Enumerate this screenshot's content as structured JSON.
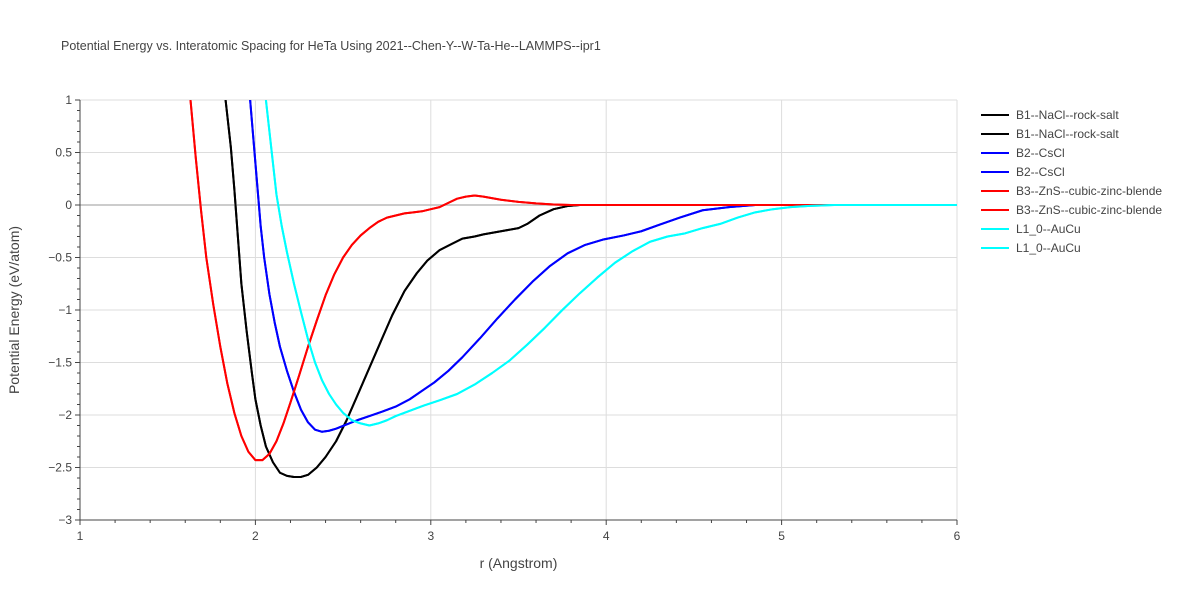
{
  "chart_data": {
    "type": "line",
    "title": "Potential Energy vs. Interatomic Spacing for HeTa Using 2021--Chen-Y--W-Ta-He--LAMMPS--ipr1",
    "xlabel": "r (Angstrom)",
    "ylabel": "Potential Energy (eV/atom)",
    "xlim": [
      1,
      6
    ],
    "ylim": [
      -3,
      1
    ],
    "xticks": [
      1,
      2,
      3,
      4,
      5,
      6
    ],
    "xtick_labels": [
      "1",
      "2",
      "3",
      "4",
      "5",
      "6"
    ],
    "yticks": [
      -3,
      -2.5,
      -2,
      -1.5,
      -1,
      -0.5,
      0,
      0.5,
      1
    ],
    "ytick_labels": [
      "−3",
      "−2.5",
      "−2",
      "−1.5",
      "−1",
      "−0.5",
      "0",
      "0.5",
      "1"
    ],
    "grid": true,
    "legend_position": "right",
    "series": [
      {
        "name": "B1--NaCl--rock-salt",
        "color": "#000000",
        "x": [
          1.83,
          1.86,
          1.88,
          1.9,
          1.92,
          1.95,
          1.98,
          2.0,
          2.03,
          2.06,
          2.1,
          2.14,
          2.18,
          2.22,
          2.26,
          2.3,
          2.35,
          2.4,
          2.46,
          2.52,
          2.58,
          2.65,
          2.72,
          2.78,
          2.85,
          2.92,
          2.98,
          3.05,
          3.12,
          3.18,
          3.25,
          3.3,
          3.4,
          3.5,
          3.55,
          3.62,
          3.7,
          3.78,
          3.85,
          3.95,
          4.1,
          4.3,
          5.0,
          6.0
        ],
        "y": [
          1.0,
          0.55,
          0.15,
          -0.3,
          -0.75,
          -1.2,
          -1.6,
          -1.85,
          -2.1,
          -2.3,
          -2.45,
          -2.55,
          -2.58,
          -2.59,
          -2.59,
          -2.57,
          -2.5,
          -2.4,
          -2.25,
          -2.05,
          -1.82,
          -1.55,
          -1.28,
          -1.05,
          -0.82,
          -0.65,
          -0.53,
          -0.43,
          -0.37,
          -0.32,
          -0.3,
          -0.28,
          -0.25,
          -0.22,
          -0.18,
          -0.1,
          -0.04,
          -0.01,
          0.0,
          0.0,
          0.0,
          0.0,
          0.0,
          0.0
        ]
      },
      {
        "name": "B1--NaCl--rock-salt",
        "color": "#000000",
        "x": [
          1.83,
          1.86,
          1.88,
          1.9,
          1.92,
          1.95,
          1.98,
          2.0,
          2.03,
          2.06,
          2.1,
          2.14,
          2.18,
          2.22,
          2.26,
          2.3,
          2.35,
          2.4,
          2.46,
          2.52,
          2.58,
          2.65,
          2.72,
          2.78,
          2.85,
          2.92,
          2.98,
          3.05,
          3.12,
          3.18,
          3.25,
          3.3,
          3.4,
          3.5,
          3.55,
          3.62,
          3.7,
          3.78,
          3.85,
          3.95,
          4.1,
          4.3,
          5.0,
          6.0
        ],
        "y": [
          1.0,
          0.55,
          0.15,
          -0.3,
          -0.75,
          -1.2,
          -1.6,
          -1.85,
          -2.1,
          -2.3,
          -2.45,
          -2.55,
          -2.58,
          -2.59,
          -2.59,
          -2.57,
          -2.5,
          -2.4,
          -2.25,
          -2.05,
          -1.82,
          -1.55,
          -1.28,
          -1.05,
          -0.82,
          -0.65,
          -0.53,
          -0.43,
          -0.37,
          -0.32,
          -0.3,
          -0.28,
          -0.25,
          -0.22,
          -0.18,
          -0.1,
          -0.04,
          -0.01,
          0.0,
          0.0,
          0.0,
          0.0,
          0.0,
          0.0
        ]
      },
      {
        "name": "B2--CsCl",
        "color": "#0000ff",
        "x": [
          1.97,
          1.99,
          2.01,
          2.03,
          2.05,
          2.08,
          2.11,
          2.14,
          2.18,
          2.22,
          2.26,
          2.3,
          2.34,
          2.38,
          2.42,
          2.46,
          2.52,
          2.58,
          2.65,
          2.72,
          2.8,
          2.88,
          2.95,
          3.02,
          3.1,
          3.18,
          3.28,
          3.38,
          3.48,
          3.58,
          3.68,
          3.78,
          3.88,
          3.98,
          4.1,
          4.2,
          4.3,
          4.42,
          4.55,
          4.7,
          4.85,
          5.0,
          5.2,
          6.0
        ],
        "y": [
          1.0,
          0.6,
          0.2,
          -0.2,
          -0.5,
          -0.85,
          -1.12,
          -1.35,
          -1.58,
          -1.78,
          -1.95,
          -2.07,
          -2.14,
          -2.16,
          -2.15,
          -2.13,
          -2.09,
          -2.05,
          -2.01,
          -1.97,
          -1.92,
          -1.85,
          -1.77,
          -1.69,
          -1.58,
          -1.45,
          -1.27,
          -1.08,
          -0.9,
          -0.73,
          -0.58,
          -0.46,
          -0.38,
          -0.33,
          -0.29,
          -0.25,
          -0.19,
          -0.12,
          -0.05,
          -0.02,
          0.0,
          0.0,
          0.0,
          0.0
        ]
      },
      {
        "name": "B2--CsCl",
        "color": "#0000ff",
        "x": [
          1.97,
          1.99,
          2.01,
          2.03,
          2.05,
          2.08,
          2.11,
          2.14,
          2.18,
          2.22,
          2.26,
          2.3,
          2.34,
          2.38,
          2.42,
          2.46,
          2.52,
          2.58,
          2.65,
          2.72,
          2.8,
          2.88,
          2.95,
          3.02,
          3.1,
          3.18,
          3.28,
          3.38,
          3.48,
          3.58,
          3.68,
          3.78,
          3.88,
          3.98,
          4.1,
          4.2,
          4.3,
          4.42,
          4.55,
          4.7,
          4.85,
          5.0,
          5.2,
          6.0
        ],
        "y": [
          1.0,
          0.6,
          0.2,
          -0.2,
          -0.5,
          -0.85,
          -1.12,
          -1.35,
          -1.58,
          -1.78,
          -1.95,
          -2.07,
          -2.14,
          -2.16,
          -2.15,
          -2.13,
          -2.09,
          -2.05,
          -2.01,
          -1.97,
          -1.92,
          -1.85,
          -1.77,
          -1.69,
          -1.58,
          -1.45,
          -1.27,
          -1.08,
          -0.9,
          -0.73,
          -0.58,
          -0.46,
          -0.38,
          -0.33,
          -0.29,
          -0.25,
          -0.19,
          -0.12,
          -0.05,
          -0.02,
          0.0,
          0.0,
          0.0,
          0.0
        ]
      },
      {
        "name": "B3--ZnS--cubic-zinc-blende",
        "color": "#ff0000",
        "x": [
          1.63,
          1.66,
          1.69,
          1.72,
          1.76,
          1.8,
          1.84,
          1.88,
          1.92,
          1.96,
          2.0,
          2.04,
          2.08,
          2.12,
          2.16,
          2.2,
          2.25,
          2.3,
          2.35,
          2.4,
          2.45,
          2.5,
          2.55,
          2.6,
          2.65,
          2.7,
          2.75,
          2.8,
          2.85,
          2.9,
          2.95,
          3.0,
          3.05,
          3.1,
          3.15,
          3.2,
          3.25,
          3.3,
          3.4,
          3.5,
          3.6,
          3.7,
          3.8,
          3.9,
          4.0,
          4.5,
          5.0,
          6.0
        ],
        "y": [
          1.0,
          0.45,
          -0.05,
          -0.5,
          -0.95,
          -1.35,
          -1.7,
          -1.98,
          -2.2,
          -2.35,
          -2.43,
          -2.43,
          -2.37,
          -2.25,
          -2.08,
          -1.88,
          -1.62,
          -1.35,
          -1.1,
          -0.86,
          -0.66,
          -0.5,
          -0.38,
          -0.29,
          -0.22,
          -0.16,
          -0.12,
          -0.1,
          -0.08,
          -0.07,
          -0.06,
          -0.04,
          -0.02,
          0.02,
          0.06,
          0.08,
          0.09,
          0.08,
          0.05,
          0.03,
          0.015,
          0.005,
          0.0,
          0.0,
          0.0,
          0.0,
          0.0,
          0.0
        ]
      },
      {
        "name": "B3--ZnS--cubic-zinc-blende",
        "color": "#ff0000",
        "x": [
          1.63,
          1.66,
          1.69,
          1.72,
          1.76,
          1.8,
          1.84,
          1.88,
          1.92,
          1.96,
          2.0,
          2.04,
          2.08,
          2.12,
          2.16,
          2.2,
          2.25,
          2.3,
          2.35,
          2.4,
          2.45,
          2.5,
          2.55,
          2.6,
          2.65,
          2.7,
          2.75,
          2.8,
          2.85,
          2.9,
          2.95,
          3.0,
          3.05,
          3.1,
          3.15,
          3.2,
          3.25,
          3.3,
          3.4,
          3.5,
          3.6,
          3.7,
          3.8,
          3.9,
          4.0,
          4.5,
          5.0,
          6.0
        ],
        "y": [
          1.0,
          0.45,
          -0.05,
          -0.5,
          -0.95,
          -1.35,
          -1.7,
          -1.98,
          -2.2,
          -2.35,
          -2.43,
          -2.43,
          -2.37,
          -2.25,
          -2.08,
          -1.88,
          -1.62,
          -1.35,
          -1.1,
          -0.86,
          -0.66,
          -0.5,
          -0.38,
          -0.29,
          -0.22,
          -0.16,
          -0.12,
          -0.1,
          -0.08,
          -0.07,
          -0.06,
          -0.04,
          -0.02,
          0.02,
          0.06,
          0.08,
          0.09,
          0.08,
          0.05,
          0.03,
          0.015,
          0.005,
          0.0,
          0.0,
          0.0,
          0.0,
          0.0,
          0.0
        ]
      },
      {
        "name": "L1_0--AuCu",
        "color": "#00ffff",
        "x": [
          2.06,
          2.08,
          2.1,
          2.12,
          2.15,
          2.18,
          2.22,
          2.26,
          2.3,
          2.34,
          2.38,
          2.42,
          2.46,
          2.5,
          2.55,
          2.6,
          2.65,
          2.7,
          2.75,
          2.8,
          2.88,
          2.96,
          3.05,
          3.15,
          3.25,
          3.35,
          3.45,
          3.55,
          3.65,
          3.75,
          3.85,
          3.95,
          4.05,
          4.15,
          4.25,
          4.35,
          4.45,
          4.55,
          4.65,
          4.75,
          4.85,
          4.95,
          5.05,
          5.15,
          5.3,
          6.0
        ],
        "y": [
          1.0,
          0.7,
          0.4,
          0.1,
          -0.2,
          -0.45,
          -0.75,
          -1.02,
          -1.28,
          -1.5,
          -1.67,
          -1.8,
          -1.9,
          -1.98,
          -2.05,
          -2.08,
          -2.1,
          -2.08,
          -2.05,
          -2.01,
          -1.96,
          -1.91,
          -1.86,
          -1.8,
          -1.71,
          -1.6,
          -1.48,
          -1.33,
          -1.17,
          -1.0,
          -0.84,
          -0.69,
          -0.55,
          -0.44,
          -0.35,
          -0.3,
          -0.27,
          -0.22,
          -0.18,
          -0.12,
          -0.07,
          -0.04,
          -0.02,
          -0.01,
          0.0,
          0.0
        ]
      },
      {
        "name": "L1_0--AuCu",
        "color": "#00ffff",
        "x": [
          2.06,
          2.08,
          2.1,
          2.12,
          2.15,
          2.18,
          2.22,
          2.26,
          2.3,
          2.34,
          2.38,
          2.42,
          2.46,
          2.5,
          2.55,
          2.6,
          2.65,
          2.7,
          2.75,
          2.8,
          2.88,
          2.96,
          3.05,
          3.15,
          3.25,
          3.35,
          3.45,
          3.55,
          3.65,
          3.75,
          3.85,
          3.95,
          4.05,
          4.15,
          4.25,
          4.35,
          4.45,
          4.55,
          4.65,
          4.75,
          4.85,
          4.95,
          5.05,
          5.15,
          5.3,
          6.0
        ],
        "y": [
          1.0,
          0.7,
          0.4,
          0.1,
          -0.2,
          -0.45,
          -0.75,
          -1.02,
          -1.28,
          -1.5,
          -1.67,
          -1.8,
          -1.9,
          -1.98,
          -2.05,
          -2.08,
          -2.1,
          -2.08,
          -2.05,
          -2.01,
          -1.96,
          -1.91,
          -1.86,
          -1.8,
          -1.71,
          -1.6,
          -1.48,
          -1.33,
          -1.17,
          -1.0,
          -0.84,
          -0.69,
          -0.55,
          -0.44,
          -0.35,
          -0.3,
          -0.27,
          -0.22,
          -0.18,
          -0.12,
          -0.07,
          -0.04,
          -0.02,
          -0.01,
          0.0,
          0.0
        ]
      }
    ]
  }
}
